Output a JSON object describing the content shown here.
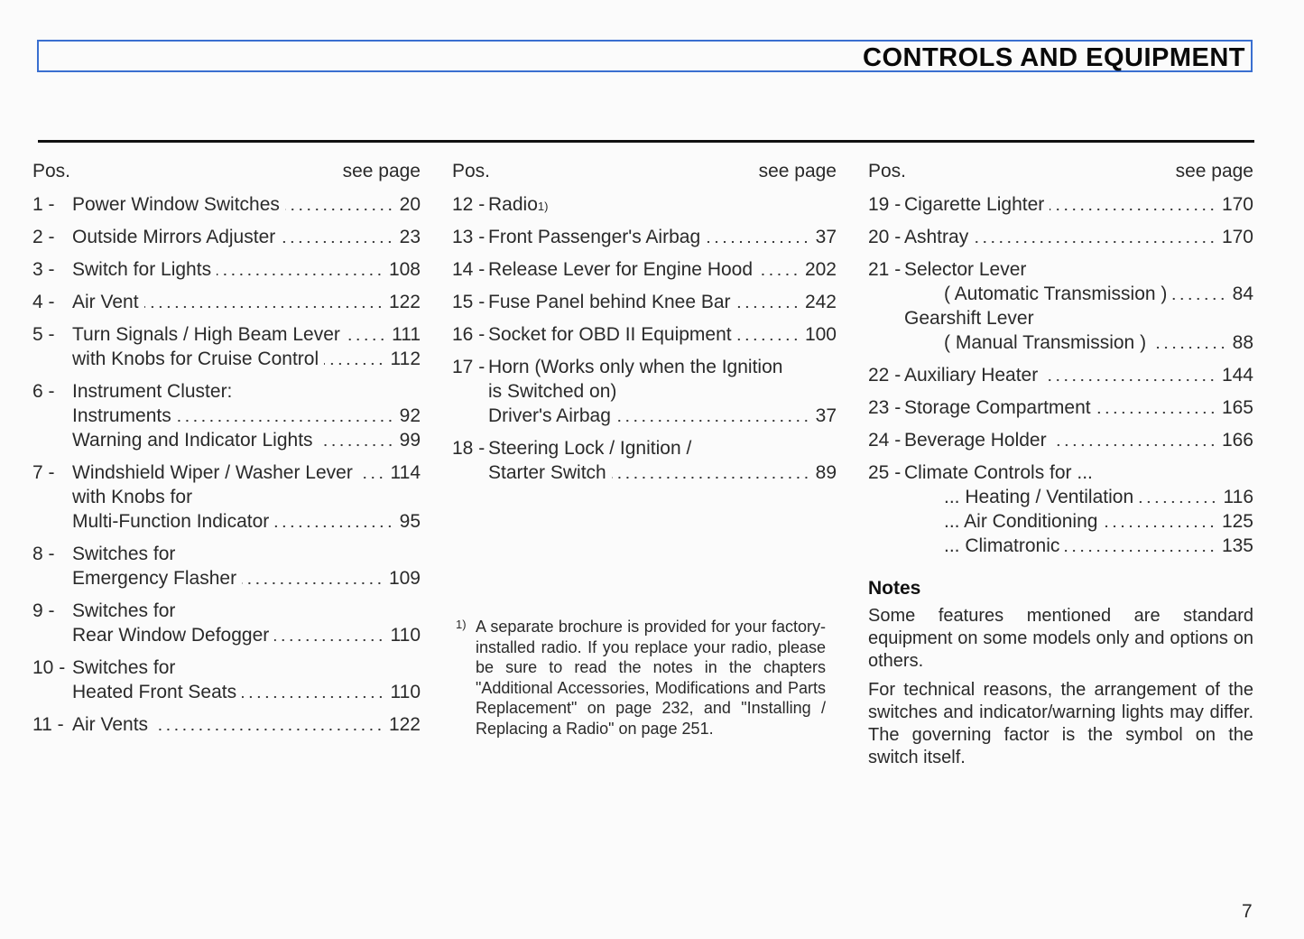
{
  "header": {
    "title": "CONTROLS AND EQUIPMENT"
  },
  "columns": [
    {
      "pos_label": "Pos.",
      "see_page_label": "see page",
      "entries": [
        {
          "num": "1 -",
          "lines": [
            {
              "text": "Power Window Switches",
              "page": "20"
            }
          ]
        },
        {
          "num": "2 -",
          "lines": [
            {
              "text": "Outside Mirrors Adjuster",
              "page": "23"
            }
          ]
        },
        {
          "num": "3 -",
          "lines": [
            {
              "text": "Switch for Lights",
              "page": "108"
            }
          ]
        },
        {
          "num": "4 -",
          "lines": [
            {
              "text": "Air Vent",
              "page": "122"
            }
          ]
        },
        {
          "num": "5 -",
          "lines": [
            {
              "text": "Turn Signals / High Beam Lever",
              "page": "111"
            },
            {
              "text": "with Knobs for Cruise Control",
              "page": "112"
            }
          ]
        },
        {
          "num": "6 -",
          "lines": [
            {
              "text": "Instrument Cluster:",
              "page": ""
            },
            {
              "text": "Instruments",
              "page": "92"
            },
            {
              "text": "Warning and Indicator Lights",
              "page": "99"
            }
          ]
        },
        {
          "num": "7 -",
          "lines": [
            {
              "text": "Windshield Wiper / Washer Lever",
              "page": "114"
            },
            {
              "text": "with Knobs for",
              "page": ""
            },
            {
              "text": "Multi-Function Indicator",
              "page": "95"
            }
          ]
        },
        {
          "num": "8 -",
          "lines": [
            {
              "text": "Switches for",
              "page": ""
            },
            {
              "text": "Emergency Flasher",
              "page": "109"
            }
          ]
        },
        {
          "num": "9 -",
          "lines": [
            {
              "text": "Switches for",
              "page": ""
            },
            {
              "text": "Rear Window Defogger",
              "page": "110"
            }
          ]
        },
        {
          "num": "10 -",
          "lines": [
            {
              "text": "Switches for",
              "page": ""
            },
            {
              "text": "Heated Front Seats",
              "page": "110"
            }
          ]
        },
        {
          "num": "11 -",
          "lines": [
            {
              "text": "Air Vents",
              "page": "122"
            }
          ]
        }
      ]
    },
    {
      "pos_label": "Pos.",
      "see_page_label": "see page",
      "entries": [
        {
          "num": "12 -",
          "lines": [
            {
              "text": "Radio",
              "sup": "1)",
              "page": ""
            }
          ]
        },
        {
          "num": "13 -",
          "lines": [
            {
              "text": "Front Passenger's Airbag",
              "page": "37"
            }
          ]
        },
        {
          "num": "14 -",
          "lines": [
            {
              "text": "Release Lever for Engine Hood",
              "page": "202"
            }
          ]
        },
        {
          "num": "15 -",
          "lines": [
            {
              "text": "Fuse Panel behind Knee Bar",
              "page": "242"
            }
          ]
        },
        {
          "num": "16 -",
          "lines": [
            {
              "text": "Socket for OBD II Equipment",
              "page": "100"
            }
          ]
        },
        {
          "num": "17 -",
          "lines": [
            {
              "text": "Horn (Works only when the Ignition",
              "page": ""
            },
            {
              "text": "is Switched on)",
              "page": ""
            },
            {
              "text": "Driver's Airbag",
              "page": "37"
            }
          ]
        },
        {
          "num": "18 -",
          "lines": [
            {
              "text": "Steering Lock / Ignition /",
              "page": ""
            },
            {
              "text": "Starter Switch",
              "page": "89"
            }
          ]
        }
      ]
    },
    {
      "pos_label": "Pos.",
      "see_page_label": "see page",
      "entries": [
        {
          "num": "19 -",
          "lines": [
            {
              "text": "Cigarette Lighter",
              "page": "170"
            }
          ]
        },
        {
          "num": "20 -",
          "lines": [
            {
              "text": "Ashtray",
              "page": "170"
            }
          ]
        },
        {
          "num": "21 -",
          "lines": [
            {
              "text": "Selector Lever",
              "page": ""
            },
            {
              "text": "( Automatic Transmission )",
              "page": "84",
              "sub": true
            },
            {
              "text": "Gearshift Lever",
              "page": ""
            },
            {
              "text": "( Manual Transmission )",
              "page": "88",
              "sub": true
            }
          ]
        },
        {
          "num": "22 -",
          "lines": [
            {
              "text": "Auxiliary Heater",
              "page": "144"
            }
          ]
        },
        {
          "num": "23 -",
          "lines": [
            {
              "text": "Storage Compartment",
              "page": "165"
            }
          ]
        },
        {
          "num": "24 -",
          "lines": [
            {
              "text": "Beverage Holder",
              "page": "166"
            }
          ]
        },
        {
          "num": "25 -",
          "lines": [
            {
              "text": "Climate Controls for ...",
              "page": ""
            },
            {
              "text": "... Heating / Ventilation",
              "page": "116",
              "sub": true
            },
            {
              "text": "... Air Conditioning",
              "page": "125",
              "sub": true
            },
            {
              "text": "... Climatronic",
              "page": "135",
              "sub": true
            }
          ]
        }
      ]
    }
  ],
  "footnote": {
    "mark": "1)",
    "text": "A separate brochure is provided for your factory-installed radio. If you replace your radio, please be sure to read the notes in the chapters \"Additional Accessories, Modifications and Parts Replacement\" on page 232, and \"Installing / Replacing a Radio\" on page 251."
  },
  "notes": {
    "heading": "Notes",
    "paragraphs": [
      "Some features mentioned are standard equipment on some models only and options on others.",
      "For technical reasons, the arrangement of the switches and indicator/warning lights may differ. The governing factor is the symbol on the switch itself."
    ]
  },
  "page_number": "7"
}
